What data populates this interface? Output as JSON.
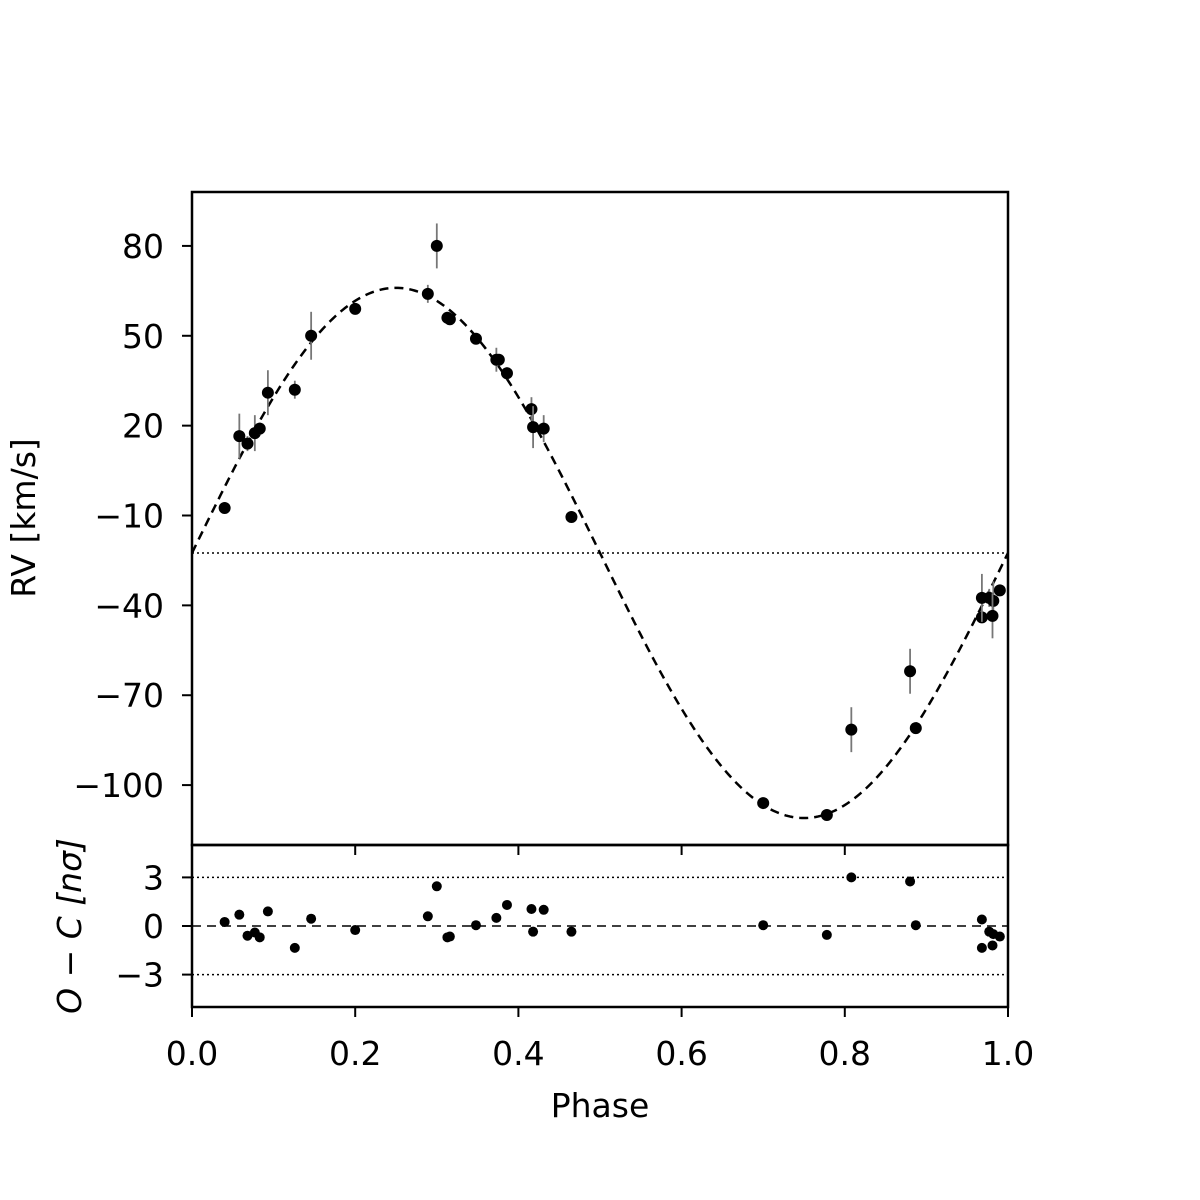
{
  "chart_data": {
    "type": "scatter",
    "subplots": [
      {
        "id": "rv",
        "ylabel": "RV [km/s]",
        "ylim": [
          -120,
          98
        ],
        "yticks": [
          80,
          50,
          20,
          -10,
          -40,
          -70,
          -100
        ],
        "ytick_labels": [
          "80",
          "50",
          "20",
          "−10",
          "−40",
          "−70",
          "−100"
        ],
        "systemic_velocity": -22.5,
        "model": {
          "style": "dashed",
          "amplitude": 88.5,
          "offset": -22.5
        },
        "series": [
          {
            "x": [
              0.04,
              0.058,
              0.068,
              0.077,
              0.083,
              0.093,
              0.126,
              0.146,
              0.2,
              0.289,
              0.3,
              0.313,
              0.316,
              0.348,
              0.373,
              0.376,
              0.386,
              0.416,
              0.418,
              0.431,
              0.465,
              0.7,
              0.778,
              0.808,
              0.88,
              0.887,
              0.968,
              0.968,
              0.977,
              0.982,
              0.981,
              0.99
            ],
            "y": [
              -7.5,
              16.5,
              14,
              17.5,
              19,
              31,
              32,
              50,
              59,
              64,
              80,
              56,
              55.5,
              49,
              42,
              42,
              37.5,
              25.5,
              19.5,
              19,
              -10.5,
              -106,
              -110,
              -81.5,
              -62,
              -81,
              -44,
              -37.5,
              -37.5,
              -38.5,
              -43.5,
              -35
            ],
            "yerr": [
              1.5,
              7.5,
              2.5,
              6,
              2,
              7.5,
              3,
              8,
              1.5,
              3,
              7.5,
              1.5,
              1.5,
              1.5,
              4,
              1.5,
              2,
              4,
              7,
              4.5,
              1.5,
              1.5,
              1.5,
              7.5,
              7.5,
              1.5,
              1.5,
              8,
              3,
              6.5,
              7.5,
              1.5
            ]
          }
        ]
      },
      {
        "id": "residuals",
        "ylabel": "O − C [nσ]",
        "ylim": [
          -5,
          5
        ],
        "yticks": [
          3,
          0,
          -3
        ],
        "ytick_labels": [
          "3",
          "0",
          "−3"
        ],
        "reference_lines": [
          3,
          0,
          -3
        ],
        "series": [
          {
            "x": [
              0.04,
              0.058,
              0.068,
              0.077,
              0.083,
              0.093,
              0.126,
              0.146,
              0.2,
              0.289,
              0.3,
              0.313,
              0.316,
              0.348,
              0.373,
              0.386,
              0.416,
              0.418,
              0.431,
              0.465,
              0.7,
              0.778,
              0.808,
              0.88,
              0.887,
              0.968,
              0.968,
              0.977,
              0.982,
              0.981,
              0.99
            ],
            "y": [
              0.25,
              0.7,
              -0.6,
              -0.4,
              -0.7,
              0.9,
              -1.35,
              0.45,
              -0.25,
              0.6,
              2.45,
              -0.7,
              -0.65,
              0.05,
              0.5,
              1.3,
              1.05,
              -0.35,
              1.0,
              -0.35,
              0.05,
              -0.55,
              3.0,
              2.75,
              0.05,
              0.4,
              -1.35,
              -0.35,
              -0.5,
              -1.2,
              -0.65
            ]
          }
        ]
      }
    ],
    "xlabel": "Phase",
    "xlim": [
      0.0,
      1.0
    ],
    "xticks": [
      0.0,
      0.2,
      0.4,
      0.6,
      0.8,
      1.0
    ],
    "xtick_labels": [
      "0.0",
      "0.2",
      "0.4",
      "0.6",
      "0.8",
      "1.0"
    ],
    "grid": false
  }
}
